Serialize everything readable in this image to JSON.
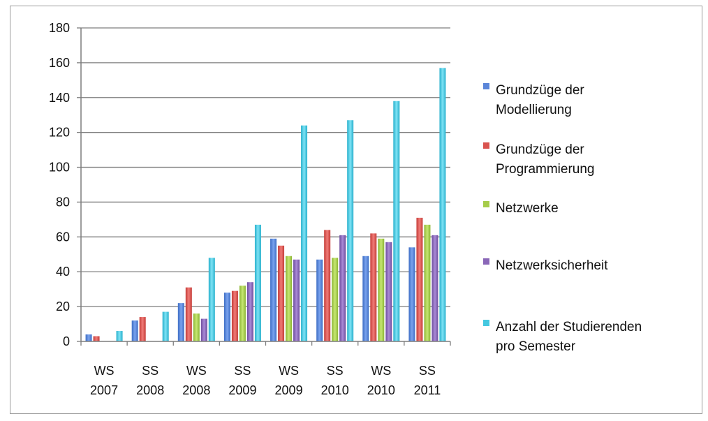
{
  "chart_data": {
    "type": "bar",
    "categories": [
      [
        "WS",
        "2007"
      ],
      [
        "SS",
        "2008"
      ],
      [
        "WS",
        "2008"
      ],
      [
        "SS",
        "2009"
      ],
      [
        "WS",
        "2009"
      ],
      [
        "SS",
        "2010"
      ],
      [
        "WS",
        "2010"
      ],
      [
        "SS",
        "2011"
      ]
    ],
    "ylim": [
      0,
      180
    ],
    "yticks": [
      0,
      20,
      40,
      60,
      80,
      100,
      120,
      140,
      160,
      180
    ],
    "grid": true,
    "legend_position": "right",
    "series": [
      {
        "name_lines": [
          "Grundzüge der",
          "Modellierung"
        ],
        "color": "#5b86d9",
        "values": [
          4,
          12,
          22,
          28,
          59,
          47,
          49,
          54
        ]
      },
      {
        "name_lines": [
          "Grundzüge der",
          "Programmierung"
        ],
        "color": "#d9534f",
        "values": [
          3,
          14,
          31,
          29,
          55,
          64,
          62,
          71
        ]
      },
      {
        "name_lines": [
          "Netzwerke"
        ],
        "color": "#a6cc4a",
        "values": [
          0,
          0,
          16,
          32,
          49,
          48,
          59,
          67
        ]
      },
      {
        "name_lines": [
          "Netzwerksicherheit"
        ],
        "color": "#8a67b8",
        "values": [
          0,
          0,
          13,
          34,
          47,
          61,
          57,
          61
        ]
      },
      {
        "name_lines": [
          "Anzahl der Studierenden",
          "pro Semester"
        ],
        "color": "#45c8e0",
        "values": [
          6,
          17,
          48,
          67,
          124,
          127,
          138,
          157
        ]
      }
    ]
  }
}
